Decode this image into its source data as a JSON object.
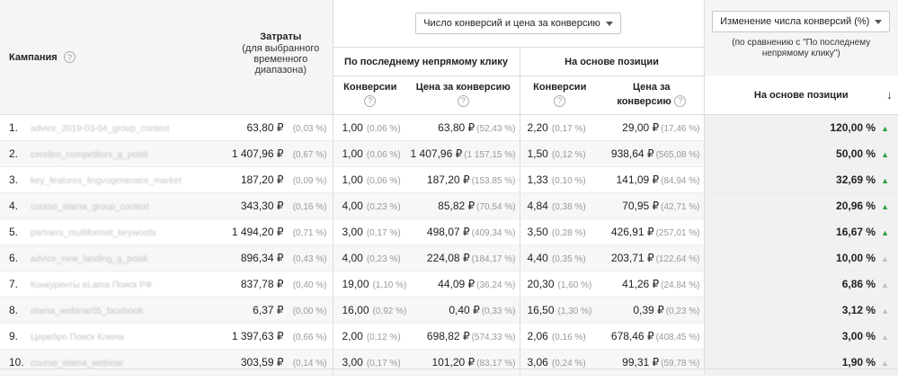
{
  "header": {
    "campaign_label": "Кампания",
    "cost_title": "Затраты",
    "cost_sub": "(для выбранного временного диапазона)",
    "metric_dropdown": "Число конверсий и цена за конверсию",
    "change_dropdown": "Изменение числа конверсий (%)",
    "change_sub": "(по сравнению с \"По последнему непрямому клику\")",
    "group_last_click": "По последнему непрямому клику",
    "group_position": "На основе позиции",
    "col_conversions": "Конверсии",
    "col_cost_per_conv": "Цена за конверсию",
    "col_cost_per_conv_2": "Цена за",
    "col_cost_per_conv_2b": "конверсию",
    "col_change": "На основе позиции",
    "help_glyph": "?"
  },
  "rows": [
    {
      "idx": "1.",
      "campaign": "advice_2019-03-04_group_context",
      "cost": "63,80 ₽",
      "cost_pct": "(0,03 %)",
      "lc_conv": "1,00",
      "lc_conv_pct": "(0,06 %)",
      "lc_cpc": "63,80 ₽",
      "lc_cpc_pct": "(52,43 %)",
      "pos_conv": "2,20",
      "pos_conv_pct": "(0,17 %)",
      "pos_cpc": "29,00 ₽",
      "pos_cpc_pct": "(17,46 %)",
      "change": "120,00 %",
      "arrow": "green"
    },
    {
      "idx": "2.",
      "campaign": "cerebro_competitors_g_poisk",
      "cost": "1 407,96 ₽",
      "cost_pct": "(0,67 %)",
      "lc_conv": "1,00",
      "lc_conv_pct": "(0,06 %)",
      "lc_cpc": "1 407,96 ₽",
      "lc_cpc_pct": "(1 157,15 %)",
      "pos_conv": "1,50",
      "pos_conv_pct": "(0,12 %)",
      "pos_cpc": "938,64 ₽",
      "pos_cpc_pct": "(565,08 %)",
      "change": "50,00 %",
      "arrow": "green"
    },
    {
      "idx": "3.",
      "campaign": "key_features_lingvogenerator_market",
      "cost": "187,20 ₽",
      "cost_pct": "(0,09 %)",
      "lc_conv": "1,00",
      "lc_conv_pct": "(0,06 %)",
      "lc_cpc": "187,20 ₽",
      "lc_cpc_pct": "(153,85 %)",
      "pos_conv": "1,33",
      "pos_conv_pct": "(0,10 %)",
      "pos_cpc": "141,09 ₽",
      "pos_cpc_pct": "(84,94 %)",
      "change": "32,69 %",
      "arrow": "green"
    },
    {
      "idx": "4.",
      "campaign": "course_elama_group_context",
      "cost": "343,30 ₽",
      "cost_pct": "(0,16 %)",
      "lc_conv": "4,00",
      "lc_conv_pct": "(0,23 %)",
      "lc_cpc": "85,82 ₽",
      "lc_cpc_pct": "(70,54 %)",
      "pos_conv": "4,84",
      "pos_conv_pct": "(0,38 %)",
      "pos_cpc": "70,95 ₽",
      "pos_cpc_pct": "(42,71 %)",
      "change": "20,96 %",
      "arrow": "green"
    },
    {
      "idx": "5.",
      "campaign": "partners_multiformat_keywords",
      "cost": "1 494,20 ₽",
      "cost_pct": "(0,71 %)",
      "lc_conv": "3,00",
      "lc_conv_pct": "(0,17 %)",
      "lc_cpc": "498,07 ₽",
      "lc_cpc_pct": "(409,34 %)",
      "pos_conv": "3,50",
      "pos_conv_pct": "(0,28 %)",
      "pos_cpc": "426,91 ₽",
      "pos_cpc_pct": "(257,01 %)",
      "change": "16,67 %",
      "arrow": "green"
    },
    {
      "idx": "6.",
      "campaign": "advice_new_landing_g_poisk",
      "cost": "896,34 ₽",
      "cost_pct": "(0,43 %)",
      "lc_conv": "4,00",
      "lc_conv_pct": "(0,23 %)",
      "lc_cpc": "224,08 ₽",
      "lc_cpc_pct": "(184,17 %)",
      "pos_conv": "4,40",
      "pos_conv_pct": "(0,35 %)",
      "pos_cpc": "203,71 ₽",
      "pos_cpc_pct": "(122,64 %)",
      "change": "10,00 %",
      "arrow": "light"
    },
    {
      "idx": "7.",
      "campaign": "Конкуренты eLama Поиск РФ",
      "cost": "837,78 ₽",
      "cost_pct": "(0,40 %)",
      "lc_conv": "19,00",
      "lc_conv_pct": "(1,10 %)",
      "lc_cpc": "44,09 ₽",
      "lc_cpc_pct": "(36,24 %)",
      "pos_conv": "20,30",
      "pos_conv_pct": "(1,60 %)",
      "pos_cpc": "41,26 ₽",
      "pos_cpc_pct": "(24,84 %)",
      "change": "6,86 %",
      "arrow": "light"
    },
    {
      "idx": "8.",
      "campaign": "elama_webinar05_facebook",
      "cost": "6,37 ₽",
      "cost_pct": "(0,00 %)",
      "lc_conv": "16,00",
      "lc_conv_pct": "(0,92 %)",
      "lc_cpc": "0,40 ₽",
      "lc_cpc_pct": "(0,33 %)",
      "pos_conv": "16,50",
      "pos_conv_pct": "(1,30 %)",
      "pos_cpc": "0,39 ₽",
      "pos_cpc_pct": "(0,23 %)",
      "change": "3,12 %",
      "arrow": "light"
    },
    {
      "idx": "9.",
      "campaign": "Церебро Поиск Ключи",
      "cost": "1 397,63 ₽",
      "cost_pct": "(0,66 %)",
      "lc_conv": "2,00",
      "lc_conv_pct": "(0,12 %)",
      "lc_cpc": "698,82 ₽",
      "lc_cpc_pct": "(574,33 %)",
      "pos_conv": "2,06",
      "pos_conv_pct": "(0,16 %)",
      "pos_cpc": "678,46 ₽",
      "pos_cpc_pct": "(408,45 %)",
      "change": "3,00 %",
      "arrow": "light"
    },
    {
      "idx": "10.",
      "campaign": "course_elama_webinar",
      "cost": "303,59 ₽",
      "cost_pct": "(0,14 %)",
      "lc_conv": "3,00",
      "lc_conv_pct": "(0,17 %)",
      "lc_cpc": "101,20 ₽",
      "lc_cpc_pct": "(83,17 %)",
      "pos_conv": "3,06",
      "pos_conv_pct": "(0,24 %)",
      "pos_cpc": "99,31 ₽",
      "pos_cpc_pct": "(59,78 %)",
      "change": "1,90 %",
      "arrow": "light"
    }
  ],
  "colors": {
    "green_arrow": "#2ea043",
    "light_arrow": "#bfbfbf",
    "header_bg": "#f5f5f5"
  }
}
